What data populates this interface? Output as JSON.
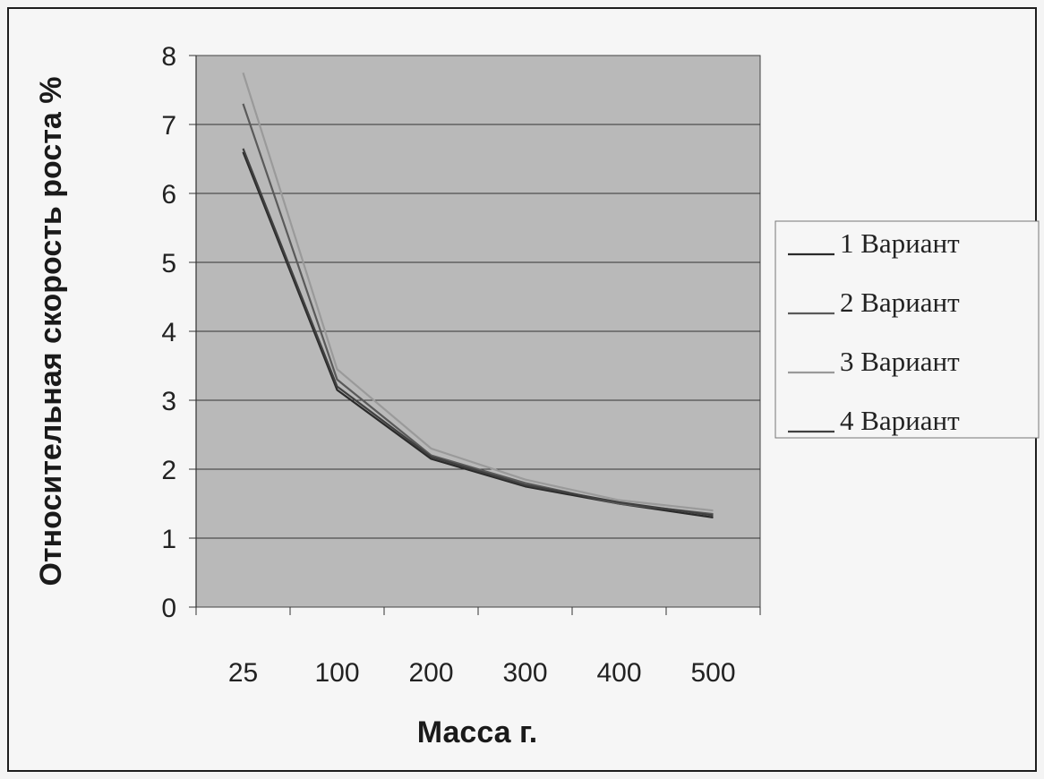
{
  "chart_data": {
    "type": "line",
    "title": "",
    "xlabel": "Масса г.",
    "ylabel": "Относительная скорость роста %",
    "categories": [
      "25",
      "100",
      "200",
      "300",
      "400",
      "500"
    ],
    "ylim": [
      0,
      8
    ],
    "yticks": [
      "0",
      "1",
      "2",
      "3",
      "4",
      "5",
      "6",
      "7",
      "8"
    ],
    "grid": true,
    "legend_position": "right",
    "series": [
      {
        "name": "1 Вариант",
        "values": [
          6.6,
          3.15,
          2.15,
          1.75,
          1.5,
          1.3
        ],
        "color": "#2a2a2a"
      },
      {
        "name": "2 Вариант",
        "values": [
          7.3,
          3.3,
          2.2,
          1.8,
          1.5,
          1.35
        ],
        "color": "#5a5a5a"
      },
      {
        "name": "3 Вариант",
        "values": [
          7.75,
          3.45,
          2.3,
          1.85,
          1.55,
          1.4
        ],
        "color": "#9a9a9a"
      },
      {
        "name": "4 Вариант",
        "values": [
          6.65,
          3.2,
          2.18,
          1.77,
          1.52,
          1.33
        ],
        "color": "#404040"
      }
    ]
  }
}
